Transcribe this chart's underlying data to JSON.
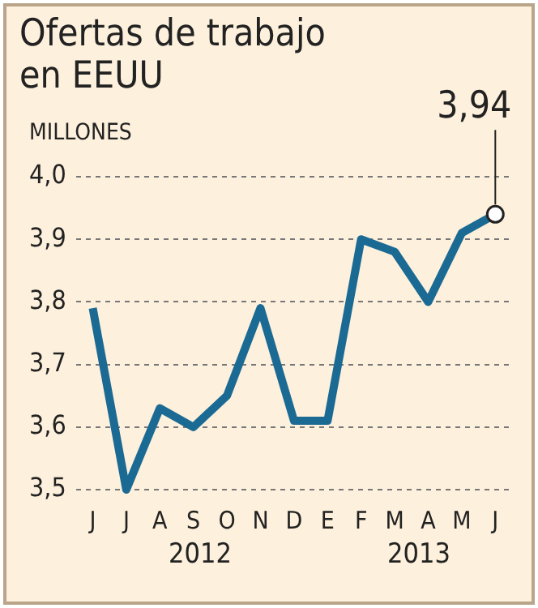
{
  "chart_data": {
    "type": "line",
    "title": "Ofertas de trabajo en EEUU",
    "ylabel": "MILLONES",
    "categories": [
      "J",
      "J",
      "A",
      "S",
      "O",
      "N",
      "D",
      "E",
      "F",
      "M",
      "A",
      "M",
      "J"
    ],
    "series": [
      {
        "color": "#1b6a94",
        "values": [
          3.79,
          3.5,
          3.63,
          3.6,
          3.65,
          3.79,
          3.61,
          3.61,
          3.9,
          3.88,
          3.8,
          3.91,
          3.94
        ],
        "value_labels": [
          null,
          null,
          null,
          null,
          null,
          null,
          null,
          null,
          null,
          null,
          null,
          null,
          "3,94"
        ]
      }
    ],
    "ylim": [
      3.5,
      4.0
    ],
    "yticks": [
      {
        "value": 3.5,
        "label": "3,5"
      },
      {
        "value": 3.6,
        "label": "3,6"
      },
      {
        "value": 3.7,
        "label": "3,7"
      },
      {
        "value": 3.8,
        "label": "3,8"
      },
      {
        "value": 3.9,
        "label": "3,9"
      },
      {
        "value": 4.0,
        "label": "4,0"
      }
    ],
    "grid": "y",
    "line_style": "solid",
    "marker": "none",
    "legend": false,
    "annotations": [
      "2012",
      "2013"
    ]
  }
}
